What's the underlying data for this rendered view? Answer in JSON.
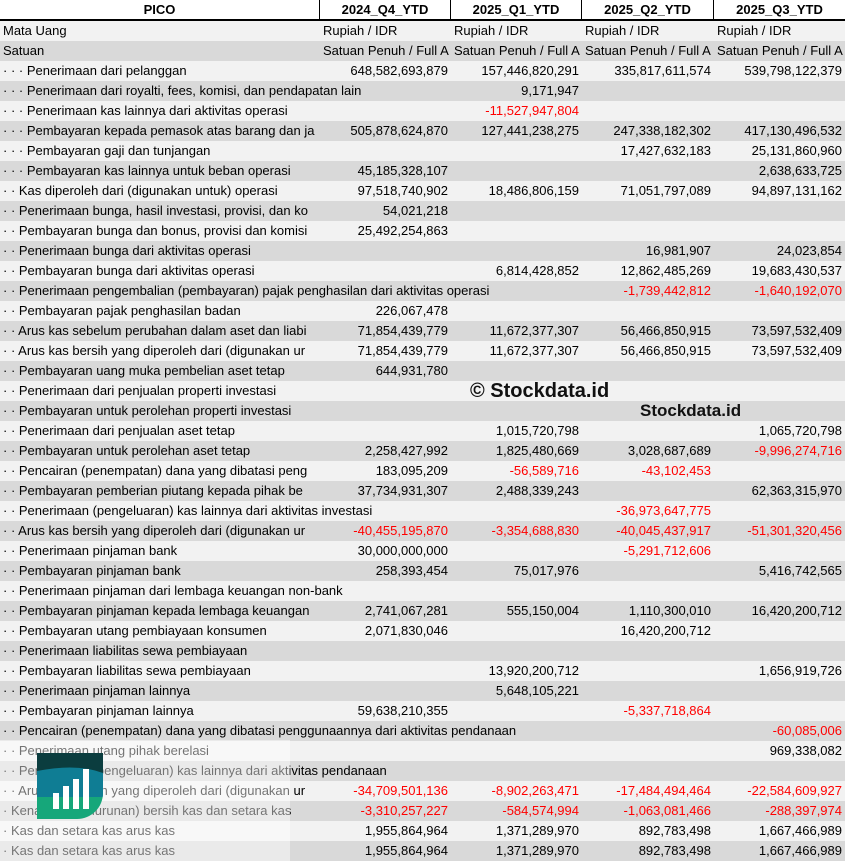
{
  "header": {
    "title": "PICO",
    "columns": [
      "2024_Q4_YTD",
      "2025_Q1_YTD",
      "2025_Q2_YTD",
      "2025_Q3_YTD"
    ]
  },
  "rows": [
    [
      "Mata Uang",
      "Rupiah / IDR",
      "Rupiah / IDR",
      "Rupiah / IDR",
      "Rupiah / IDR"
    ],
    [
      "Satuan",
      "Satuan Penuh / Full A",
      "Satuan Penuh / Full A",
      "Satuan Penuh / Full A",
      "Satuan Penuh / Full A"
    ],
    [
      "· · · Penerimaan dari pelanggan",
      "648,582,693,879",
      "157,446,820,291",
      "335,817,611,574",
      "539,798,122,379"
    ],
    [
      "· · · Penerimaan dari royalti, fees, komisi, dan pendapatan lain",
      "",
      "9,171,947",
      "",
      ""
    ],
    [
      "· · · Penerimaan kas lainnya dari aktivitas operasi",
      "",
      "-11,527,947,804",
      "",
      ""
    ],
    [
      "· · · Pembayaran kepada pemasok atas barang dan ja",
      "505,878,624,870",
      "127,441,238,275",
      "247,338,182,302",
      "417,130,496,532"
    ],
    [
      "· · · Pembayaran gaji dan tunjangan",
      "",
      "",
      "17,427,632,183",
      "25,131,860,960"
    ],
    [
      "· · · Pembayaran kas lainnya untuk beban operasi",
      "45,185,328,107",
      "",
      "",
      "2,638,633,725"
    ],
    [
      "· · Kas diperoleh dari (digunakan untuk) operasi",
      "97,518,740,902",
      "18,486,806,159",
      "71,051,797,089",
      "94,897,131,162"
    ],
    [
      "· · Penerimaan bunga, hasil investasi, provisi, dan ko",
      "54,021,218",
      "",
      "",
      ""
    ],
    [
      "· · Pembayaran bunga dan bonus, provisi dan komisi",
      "25,492,254,863",
      "",
      "",
      ""
    ],
    [
      "· · Penerimaan bunga dari aktivitas operasi",
      "",
      "",
      "16,981,907",
      "24,023,854"
    ],
    [
      "· · Pembayaran bunga dari aktivitas operasi",
      "",
      "6,814,428,852",
      "12,862,485,269",
      "19,683,430,537"
    ],
    [
      "· · Penerimaan pengembalian (pembayaran) pajak penghasilan dari aktivitas operasi",
      "",
      "",
      "-1,739,442,812",
      "-1,640,192,070"
    ],
    [
      "· · Pembayaran pajak penghasilan badan",
      "226,067,478",
      "",
      "",
      ""
    ],
    [
      "· · Arus kas sebelum perubahan dalam aset dan liabi",
      "71,854,439,779",
      "11,672,377,307",
      "56,466,850,915",
      "73,597,532,409"
    ],
    [
      "· · Arus kas bersih yang diperoleh dari (digunakan ur",
      "71,854,439,779",
      "11,672,377,307",
      "56,466,850,915",
      "73,597,532,409"
    ],
    [
      "· · Pembayaran uang muka pembelian aset tetap",
      "644,931,780",
      "",
      "",
      ""
    ],
    [
      "· · Penerimaan dari penjualan properti investasi",
      "",
      "",
      "",
      ""
    ],
    [
      "· · Pembayaran untuk perolehan properti investasi",
      "",
      "",
      "",
      ""
    ],
    [
      "· · Penerimaan dari penjualan aset tetap",
      "",
      "1,015,720,798",
      "",
      "1,065,720,798"
    ],
    [
      "· · Pembayaran untuk perolehan aset tetap",
      "2,258,427,992",
      "1,825,480,669",
      "3,028,687,689",
      "-9,996,274,716"
    ],
    [
      "· · Pencairan (penempatan) dana yang dibatasi peng",
      "183,095,209",
      "-56,589,716",
      "-43,102,453",
      ""
    ],
    [
      "· · Pembayaran pemberian piutang kepada pihak be",
      "37,734,931,307",
      "2,488,339,243",
      "",
      "62,363,315,970"
    ],
    [
      "· · Penerimaan (pengeluaran) kas lainnya dari aktivitas investasi",
      "",
      "",
      "-36,973,647,775",
      ""
    ],
    [
      "· · Arus kas bersih yang diperoleh dari (digunakan ur",
      "-40,455,195,870",
      "-3,354,688,830",
      "-40,045,437,917",
      "-51,301,320,456"
    ],
    [
      "· · Penerimaan pinjaman bank",
      "30,000,000,000",
      "",
      "-5,291,712,606",
      ""
    ],
    [
      "· · Pembayaran pinjaman bank",
      "258,393,454",
      "75,017,976",
      "",
      "5,416,742,565"
    ],
    [
      "· · Penerimaan pinjaman dari lembaga keuangan non-bank",
      "",
      "",
      "",
      ""
    ],
    [
      "· · Pembayaran pinjaman kepada lembaga keuangan",
      "2,741,067,281",
      "555,150,004",
      "1,110,300,010",
      "16,420,200,712"
    ],
    [
      "· · Pembayaran utang pembiayaan konsumen",
      "2,071,830,046",
      "",
      "16,420,200,712",
      ""
    ],
    [
      "· · Penerimaan liabilitas sewa pembiayaan",
      "",
      "",
      "",
      ""
    ],
    [
      "· · Pembayaran liabilitas sewa pembiayaan",
      "",
      "13,920,200,712",
      "",
      "1,656,919,726"
    ],
    [
      "· · Penerimaan pinjaman lainnya",
      "",
      "5,648,105,221",
      "",
      ""
    ],
    [
      "· · Pembayaran pinjaman lainnya",
      "59,638,210,355",
      "",
      "-5,337,718,864",
      ""
    ],
    [
      "· · Pencairan (penempatan) dana yang dibatasi penggunaannya dari aktivitas pendanaan",
      "",
      "",
      "",
      "-60,085,006"
    ],
    [
      "· · Penerimaan utang pihak berelasi",
      "",
      "",
      "",
      "969,338,082"
    ],
    [
      "· · Penerimaan (pengeluaran) kas lainnya dari aktivitas pendanaan",
      "",
      "",
      "",
      ""
    ],
    [
      "· · Arus kas bersih yang diperoleh dari (digunakan ur",
      "-34,709,501,136",
      "-8,902,263,471",
      "-17,484,494,464",
      "-22,584,609,927"
    ],
    [
      "· Kenaikan (penurunan) bersih kas dan setara kas",
      "-3,310,257,227",
      "-584,574,994",
      "-1,063,081,466",
      "-288,397,974"
    ],
    [
      "· Kas dan setara kas arus kas",
      "1,955,864,964",
      "1,371,289,970",
      "892,783,498",
      "1,667,466,989"
    ],
    [
      "· Kas dan setara kas arus kas",
      "1,955,864,964",
      "1,371,289,970",
      "892,783,498",
      "1,667,466,989"
    ]
  ],
  "watermark": {
    "copyright": "© Stockdata.id",
    "brand": "Stockdata.id"
  },
  "colors": {
    "negative": "#ff0000",
    "row_light": "#f2f2f2",
    "row_dark": "#d9d9d9",
    "logo_top": "#0b3d3f",
    "logo_mid": "#0f7d94",
    "logo_bottom": "#16a77a"
  }
}
